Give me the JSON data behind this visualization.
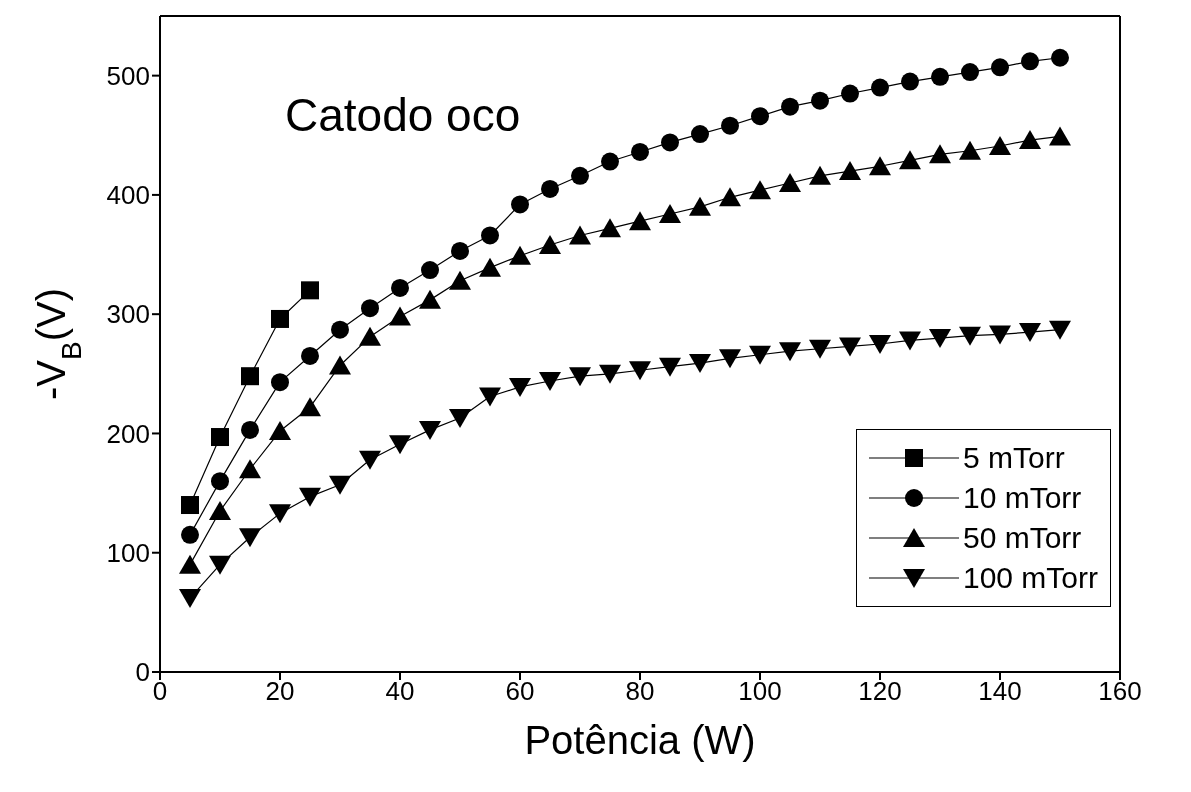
{
  "chart_data": {
    "type": "line",
    "xlabel": "Potência (W)",
    "ylabel": "-V$_{B}$(V)",
    "annotations": [
      "Catodo oco"
    ],
    "xlim": [
      0,
      160
    ],
    "xticks": [
      0,
      20,
      40,
      60,
      80,
      100,
      120,
      140,
      160
    ],
    "ylim": [
      0,
      550
    ],
    "yticks": [
      0,
      100,
      200,
      300,
      400,
      500
    ],
    "legend": "bottom right",
    "line_style": "solid",
    "series": [
      {
        "name": "5 mTorr",
        "color": "#000000",
        "marker": "square",
        "x": [
          5,
          10,
          15,
          20,
          25
        ],
        "values": [
          140,
          197,
          248,
          296,
          320
        ]
      },
      {
        "name": "10 mTorr",
        "color": "#000000",
        "marker": "circle",
        "x": [
          5,
          10,
          15,
          20,
          25,
          30,
          35,
          40,
          45,
          50,
          55,
          60,
          65,
          70,
          75,
          80,
          85,
          90,
          95,
          100,
          105,
          110,
          115,
          120,
          125,
          130,
          135,
          140,
          145,
          150
        ],
        "values": [
          115,
          160,
          203,
          243,
          265,
          287,
          305,
          322,
          337,
          353,
          366,
          392,
          405,
          416,
          428,
          436,
          444,
          451,
          458,
          466,
          474,
          479,
          485,
          490,
          495,
          499,
          503,
          507,
          512,
          515
        ]
      },
      {
        "name": "50 mTorr",
        "color": "#000000",
        "marker": "triangle",
        "x": [
          5,
          10,
          15,
          20,
          25,
          30,
          35,
          40,
          45,
          50,
          55,
          60,
          65,
          70,
          75,
          80,
          85,
          90,
          95,
          100,
          105,
          110,
          115,
          120,
          125,
          130,
          135,
          140,
          145,
          150
        ],
        "values": [
          90,
          135,
          170,
          202,
          222,
          257,
          281,
          298,
          312,
          328,
          339,
          349,
          358,
          366,
          372,
          378,
          384,
          390,
          398,
          404,
          410,
          416,
          420,
          424,
          429,
          434,
          437,
          441,
          446,
          449
        ]
      },
      {
        "name": "100 mTorr",
        "color": "#000000",
        "marker": "triangle-down",
        "x": [
          5,
          10,
          15,
          20,
          25,
          30,
          35,
          40,
          45,
          50,
          55,
          60,
          65,
          70,
          75,
          80,
          85,
          90,
          95,
          100,
          105,
          110,
          115,
          120,
          125,
          130,
          135,
          140,
          145,
          150
        ],
        "values": [
          62,
          90,
          113,
          133,
          147,
          157,
          178,
          191,
          203,
          213,
          231,
          239,
          244,
          248,
          250,
          253,
          256,
          259,
          263,
          266,
          269,
          271,
          273,
          275,
          278,
          280,
          282,
          283,
          285,
          287
        ]
      }
    ]
  }
}
